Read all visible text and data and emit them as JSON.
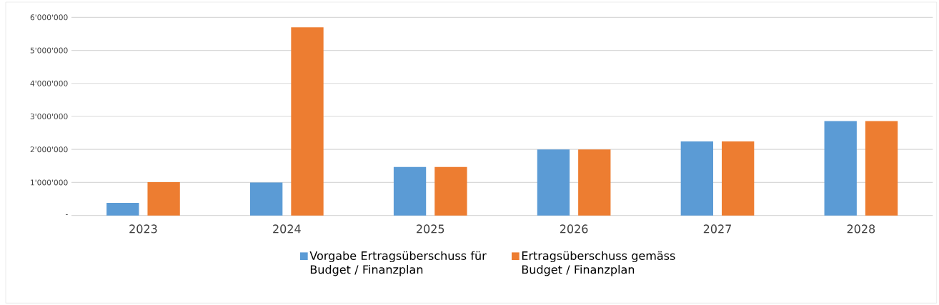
{
  "chart_data": {
    "type": "bar",
    "categories": [
      "2023",
      "2024",
      "2025",
      "2026",
      "2027",
      "2028"
    ],
    "series": [
      {
        "name": "Vorgabe Ertragsüberschuss für Budget / Finanzplan",
        "color": "#5b9bd5",
        "values": [
          380000,
          1000000,
          1470000,
          2000000,
          2240000,
          2860000
        ]
      },
      {
        "name": "Ertragsüberschuss gemäss Budget / Finanzplan",
        "color": "#ed7d31",
        "values": [
          1010000,
          5700000,
          1470000,
          2000000,
          2240000,
          2860000
        ]
      }
    ],
    "ylim": [
      0,
      6000000
    ],
    "yticks": [
      {
        "value": 0,
        "label": "-"
      },
      {
        "value": 1000000,
        "label": "1'000'000"
      },
      {
        "value": 2000000,
        "label": "2'000'000"
      },
      {
        "value": 3000000,
        "label": "3'000'000"
      },
      {
        "value": 4000000,
        "label": "4'000'000"
      },
      {
        "value": 5000000,
        "label": "5'000'000"
      },
      {
        "value": 6000000,
        "label": "6'000'000"
      }
    ],
    "grid": "y",
    "legend": "bottom"
  }
}
